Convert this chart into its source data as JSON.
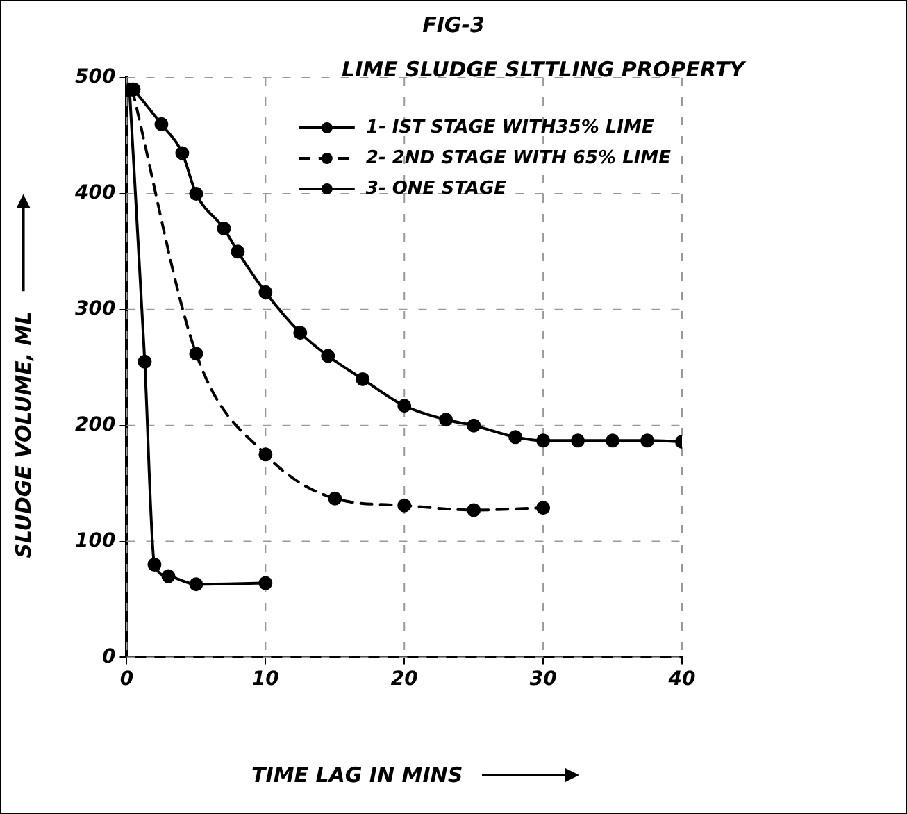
{
  "chart_data": {
    "type": "line",
    "title": "FIG-3",
    "subtitle": "LIME SLUDGE SLTTLING PROPERTY",
    "xlabel": "TIME LAG IN MINS",
    "ylabel": "SLUDGE VOLUME, ML",
    "xlim": [
      0,
      40
    ],
    "ylim": [
      0,
      500
    ],
    "xticks": [
      0,
      10,
      20,
      30,
      40
    ],
    "yticks": [
      0,
      100,
      200,
      300,
      400,
      500
    ],
    "grid": true,
    "legend": "top right",
    "marker": "circle",
    "series": [
      {
        "name": "1- IST STAGE WITH35% LIME",
        "color": "#000000",
        "line_style": "solid",
        "x": [
          0.5,
          2.5,
          4,
          5,
          7,
          8,
          10,
          12.5,
          14.5,
          17,
          20,
          23,
          25,
          28,
          30,
          32.5,
          35,
          37.5,
          40
        ],
        "values": [
          490,
          460,
          435,
          400,
          370,
          350,
          315,
          280,
          260,
          240,
          217,
          205,
          200,
          190,
          187,
          187,
          187,
          187,
          186
        ]
      },
      {
        "name": "2- 2ND STAGE WITH 65% LIME",
        "color": "#000000",
        "line_style": "dashed",
        "x": [
          0.4,
          5,
          10,
          15,
          20,
          25,
          30
        ],
        "values": [
          490,
          262,
          175,
          137,
          131,
          127,
          129
        ]
      },
      {
        "name": "3- ONE STAGE",
        "color": "#000000",
        "line_style": "solid",
        "x": [
          0.2,
          1.3,
          2,
          3,
          5,
          10
        ],
        "values": [
          490,
          255,
          80,
          70,
          63,
          64
        ]
      }
    ]
  }
}
